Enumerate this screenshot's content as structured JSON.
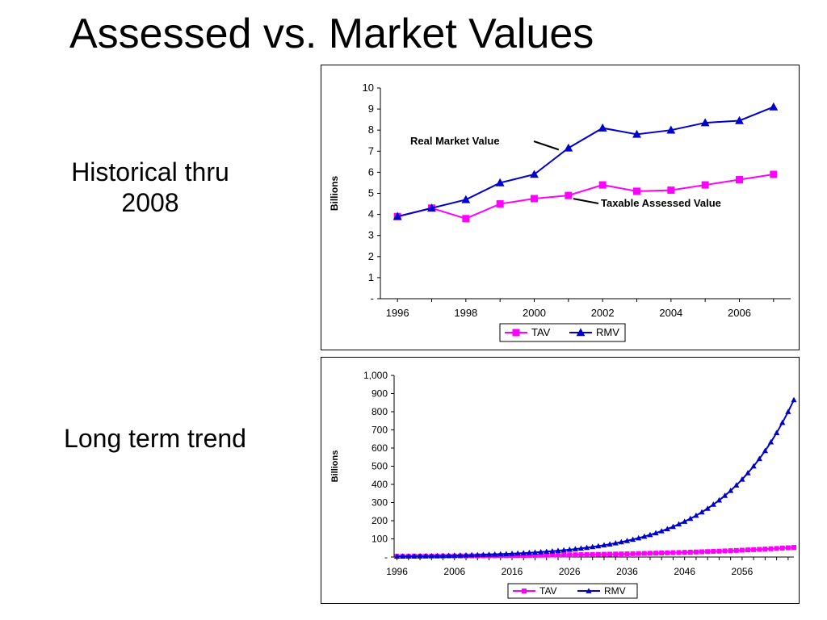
{
  "title": "Assessed vs. Market Values",
  "labels": {
    "historical": "Historical thru 2008",
    "long_term": "Long term trend"
  },
  "colors": {
    "tav": "#ff00ff",
    "rmv": "#0000cc",
    "axis": "#000000"
  },
  "chart_data": [
    {
      "type": "line",
      "ylabel": "Billions",
      "ylim": [
        0,
        10
      ],
      "yticks": [
        "-",
        "1",
        "2",
        "3",
        "4",
        "5",
        "6",
        "7",
        "8",
        "9",
        "10"
      ],
      "xticks": [
        "1996",
        "1998",
        "2000",
        "2002",
        "2004",
        "2006"
      ],
      "x": [
        1996,
        1997,
        1998,
        1999,
        2000,
        2001,
        2002,
        2003,
        2004,
        2005,
        2006,
        2007
      ],
      "xlim": [
        1995.5,
        2007.5
      ],
      "legend_position": "bottom",
      "grid": false,
      "series": [
        {
          "name": "TAV",
          "marker": "square",
          "values": [
            3.9,
            4.3,
            3.8,
            4.5,
            4.75,
            4.9,
            5.4,
            5.1,
            5.15,
            5.4,
            5.65,
            5.9
          ]
        },
        {
          "name": "RMV",
          "marker": "triangle",
          "values": [
            3.9,
            4.3,
            4.7,
            5.5,
            5.9,
            7.15,
            8.1,
            7.8,
            8.0,
            8.35,
            8.45,
            9.1
          ]
        }
      ],
      "annotations": [
        {
          "text": "Real Market Value",
          "series": "RMV",
          "x": 2001
        },
        {
          "text": "Taxable Assessed Value",
          "series": "TAV",
          "x": 2001
        }
      ]
    },
    {
      "type": "line",
      "ylabel": "Billions",
      "ylim": [
        0,
        1000
      ],
      "yticks": [
        "-",
        "100",
        "200",
        "300",
        "400",
        "500",
        "600",
        "700",
        "800",
        "900",
        "1,000"
      ],
      "xticks": [
        "1996",
        "2006",
        "2016",
        "2026",
        "2036",
        "2046",
        "2056"
      ],
      "x_start": 1996,
      "x_end": 2065,
      "xlim": [
        1995.5,
        2065
      ],
      "legend_position": "bottom",
      "grid": false,
      "series": [
        {
          "name": "TAV",
          "marker": "square",
          "start_value": 3.9,
          "end_value": 53
        },
        {
          "name": "RMV",
          "marker": "triangle",
          "start_value": 3.9,
          "end_value": 865
        }
      ]
    }
  ]
}
